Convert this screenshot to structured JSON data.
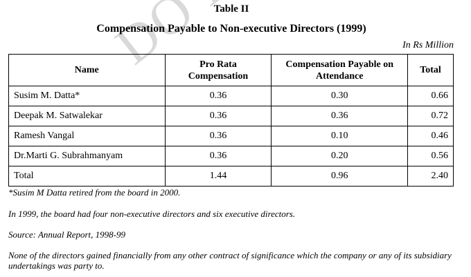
{
  "watermark": "DO NOT",
  "table_label": "Table II",
  "title": "Compensation Payable to Non-executive Directors (1999)",
  "units": "In Rs Million",
  "columns": [
    "Name",
    "Pro Rata Compensation",
    "Compensation Payable on Attendance",
    "Total"
  ],
  "rows": [
    {
      "name": "Susim M. Datta*",
      "pro_rata": "0.36",
      "attendance": "0.30",
      "total": "0.66"
    },
    {
      "name": "Deepak M. Satwalekar",
      "pro_rata": "0.36",
      "attendance": "0.36",
      "total": "0.72"
    },
    {
      "name": "Ramesh Vangal",
      "pro_rata": "0.36",
      "attendance": "0.10",
      "total": "0.46"
    },
    {
      "name": "Dr.Marti G. Subrahmanyam",
      "pro_rata": "0.36",
      "attendance": "0.20",
      "total": "0.56"
    },
    {
      "name": "Total",
      "pro_rata": "1.44",
      "attendance": "0.96",
      "total": "2.40"
    }
  ],
  "notes": [
    "*Susim M Datta retired from the board in 2000.",
    "In 1999, the board had four non-executive directors and six executive directors.",
    "Source: Annual Report, 1998-99",
    "None of the directors gained financially from any other contract of significance which the company or any of its subsidiary undertakings was party to."
  ]
}
